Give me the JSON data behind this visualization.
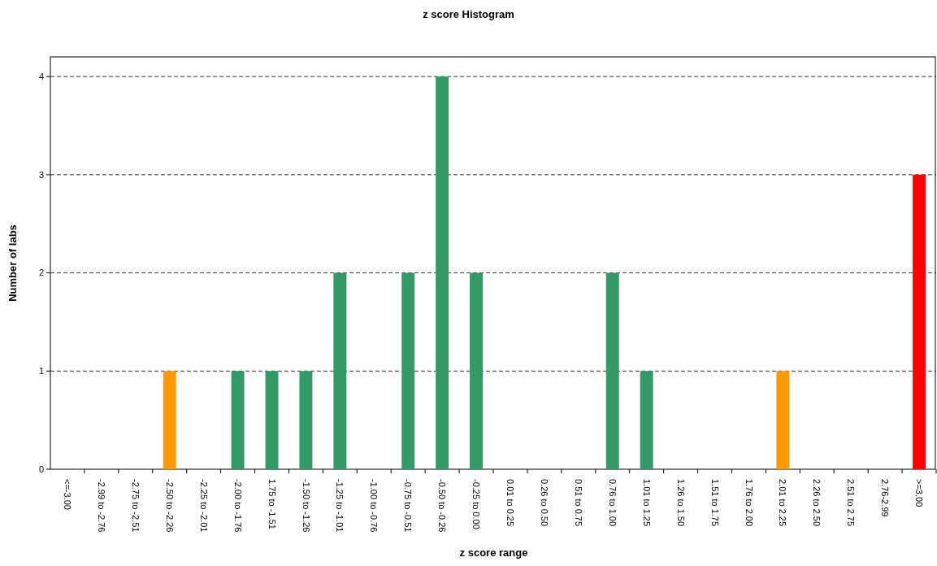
{
  "chart_data": {
    "type": "bar",
    "title": "z score Histogram",
    "xlabel": "z score range",
    "ylabel": "Number of labs",
    "categories": [
      "<=-3.00",
      "-2.99 to -2.76",
      "-2.75 to -2.51",
      "-2.50 to -2.26",
      "-2.25 to -2.01",
      "-2.00 to -1.76",
      "1.75 to -1.51",
      "-1.50 to -1.26",
      "-1.25 to -1.01",
      "-1.00 to -0.76",
      "-0.75 to -0.51",
      "-0.50 to -0.26",
      "-0.25 to 0.00",
      "0.01 to 0.25",
      "0.26 to 0.50",
      "0.51 to 0.75",
      "0.76 to 1.00",
      "1.01 to 1.25",
      "1.26 to 1.50",
      "1.51 to 1.75",
      "1.76 to 2.00",
      "2.01 to 2.25",
      "2.26 to 2.50",
      "2.51 to 2.75",
      "2.76-2.99",
      ">=3.00"
    ],
    "values": [
      0,
      0,
      0,
      1,
      0,
      1,
      1,
      1,
      2,
      0,
      2,
      4,
      2,
      0,
      0,
      0,
      2,
      1,
      0,
      0,
      0,
      1,
      0,
      0,
      0,
      3
    ],
    "colors": [
      "#339966",
      "#339966",
      "#339966",
      "#ff9900",
      "#339966",
      "#339966",
      "#339966",
      "#339966",
      "#339966",
      "#339966",
      "#339966",
      "#339966",
      "#339966",
      "#339966",
      "#339966",
      "#339966",
      "#339966",
      "#339966",
      "#339966",
      "#339966",
      "#339966",
      "#ff9900",
      "#339966",
      "#339966",
      "#339966",
      "#ff0000"
    ],
    "ylim": [
      0,
      4.2
    ],
    "yticks": [
      0,
      1,
      2,
      3,
      4
    ],
    "grid": "y"
  }
}
